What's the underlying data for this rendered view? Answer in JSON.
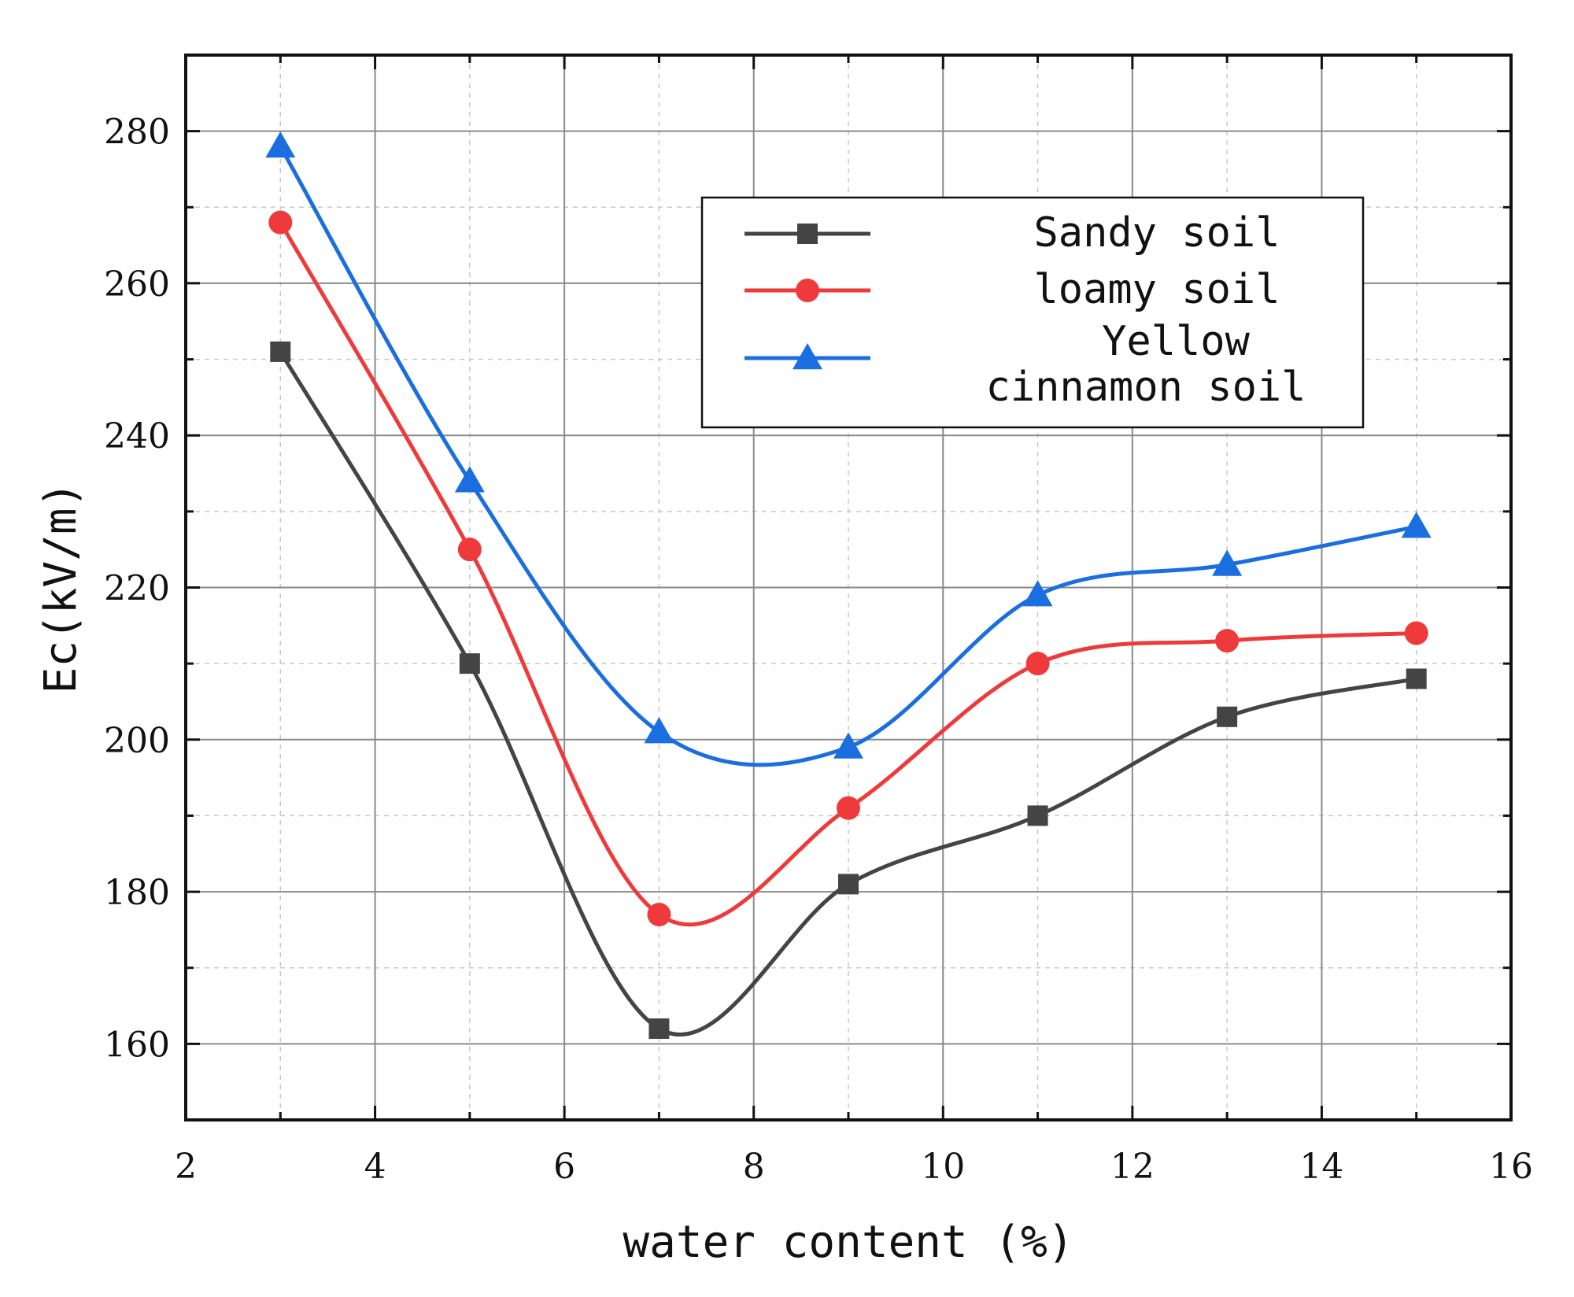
{
  "chart_data": {
    "type": "line",
    "xlabel": "water content (%)",
    "ylabel": "Ec(kV/m)",
    "xlim": [
      2,
      16
    ],
    "ylim": [
      150,
      290
    ],
    "x_ticks": [
      "2",
      "4",
      "6",
      "8",
      "10",
      "12",
      "14",
      "16"
    ],
    "y_ticks": [
      "160",
      "180",
      "200",
      "220",
      "240",
      "260",
      "280"
    ],
    "grid": true,
    "legend_position": "top-right",
    "x": [
      3,
      5,
      7,
      9,
      11,
      13,
      15
    ],
    "series": [
      {
        "name": "Sandy soil",
        "color": "#444444",
        "marker": "square",
        "values": [
          251,
          210,
          162,
          181,
          190,
          203,
          208
        ]
      },
      {
        "name": "loamy soil",
        "color": "#ee3a3a",
        "marker": "circle",
        "values": [
          268,
          225,
          177,
          191,
          210,
          213,
          214
        ]
      },
      {
        "name": "Yellow cinnamon soil",
        "name_lines": [
          "Yellow",
          "cinnamon soil"
        ],
        "color": "#1a6ee0",
        "marker": "triangle",
        "values": [
          278,
          234,
          201,
          199,
          219,
          223,
          228
        ]
      }
    ]
  }
}
